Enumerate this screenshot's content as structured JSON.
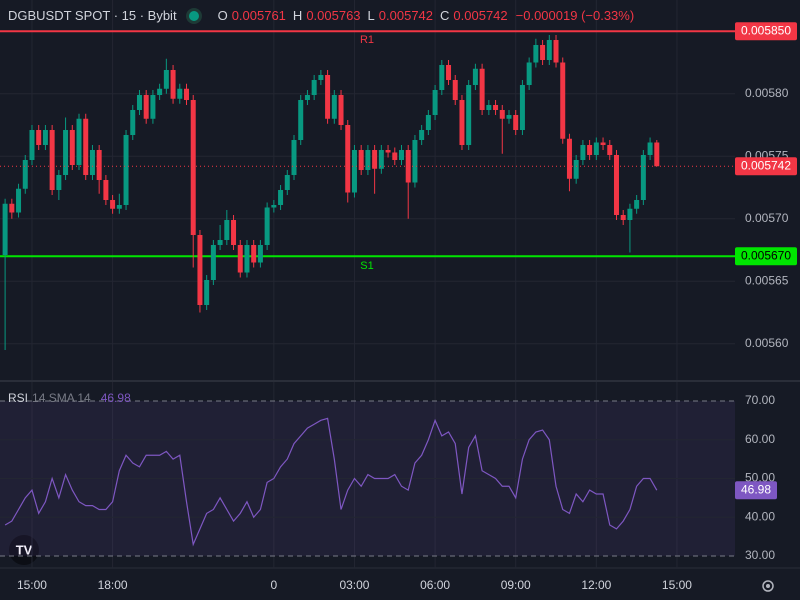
{
  "chart_data": [
    {
      "type": "candlestick",
      "title": "DGBUSDT SPOT · 15 · Bybit",
      "ohlc_labels": [
        "O",
        "H",
        "L",
        "C"
      ],
      "change": "−0.000019 (−0.33%)",
      "up_color": "#089981",
      "down_color": "#f23645",
      "x": [
        -10,
        -9.75,
        -9.5,
        -9.25,
        -9,
        -8.75,
        -8.5,
        -8.25,
        -8,
        -7.75,
        -7.5,
        -7.25,
        -7,
        -6.75,
        -6.5,
        -6.25,
        -6,
        -5.75,
        -5.5,
        -5.25,
        -5,
        -4.75,
        -4.5,
        -4.25,
        -4,
        -3.75,
        -3.5,
        -3.25,
        -3,
        -2.75,
        -2.5,
        -2.25,
        -2,
        -1.75,
        -1.5,
        -1.25,
        -1,
        -0.75,
        -0.5,
        -0.25,
        0,
        0.25,
        0.5,
        0.75,
        1,
        1.25,
        1.5,
        1.75,
        2,
        2.25,
        2.5,
        2.75,
        3,
        3.25,
        3.5,
        3.75,
        4,
        4.25,
        4.5,
        4.75,
        5,
        5.25,
        5.5,
        5.75,
        6,
        6.25,
        6.5,
        6.75,
        7,
        7.25,
        7.5,
        7.75,
        8,
        8.25,
        8.5,
        8.75,
        9,
        9.25,
        9.5,
        9.75,
        10,
        10.25,
        10.5,
        10.75,
        11,
        11.25,
        11.5,
        11.75,
        12,
        12.25,
        12.5,
        12.75,
        13,
        13.25,
        13.5,
        13.75,
        14,
        14.25
      ],
      "ohlc": [
        [
          0.005671,
          0.005716,
          0.005595,
          0.005712
        ],
        [
          0.005712,
          0.005716,
          0.0057,
          0.005705
        ],
        [
          0.005705,
          0.005728,
          0.005701,
          0.005724
        ],
        [
          0.005724,
          0.005751,
          0.00572,
          0.005747
        ],
        [
          0.005747,
          0.005775,
          0.005743,
          0.005771
        ],
        [
          0.005771,
          0.005775,
          0.005755,
          0.005759
        ],
        [
          0.005759,
          0.005775,
          0.005755,
          0.005771
        ],
        [
          0.005771,
          0.005775,
          0.005719,
          0.005723
        ],
        [
          0.005723,
          0.005739,
          0.005715,
          0.005735
        ],
        [
          0.005735,
          0.005781,
          0.005731,
          0.005771
        ],
        [
          0.005771,
          0.005775,
          0.005739,
          0.005743
        ],
        [
          0.005743,
          0.005784,
          0.005739,
          0.00578
        ],
        [
          0.00578,
          0.005784,
          0.005731,
          0.005735
        ],
        [
          0.005735,
          0.005759,
          0.005731,
          0.005755
        ],
        [
          0.005755,
          0.005759,
          0.00572,
          0.005731
        ],
        [
          0.005731,
          0.005735,
          0.005711,
          0.005715
        ],
        [
          0.005715,
          0.005719,
          0.005704,
          0.005708
        ],
        [
          0.005708,
          0.00572,
          0.005704,
          0.005711
        ],
        [
          0.005711,
          0.005771,
          0.005707,
          0.005767
        ],
        [
          0.005767,
          0.005791,
          0.005763,
          0.005787
        ],
        [
          0.005787,
          0.005803,
          0.005783,
          0.005799
        ],
        [
          0.005799,
          0.005803,
          0.005776,
          0.00578
        ],
        [
          0.00578,
          0.005803,
          0.005776,
          0.005799
        ],
        [
          0.005799,
          0.005808,
          0.005795,
          0.005804
        ],
        [
          0.005804,
          0.005828,
          0.0058,
          0.005819
        ],
        [
          0.005819,
          0.005823,
          0.005792,
          0.005796
        ],
        [
          0.005796,
          0.005808,
          0.005792,
          0.005804
        ],
        [
          0.005804,
          0.005808,
          0.005791,
          0.005795
        ],
        [
          0.005795,
          0.005799,
          0.005661,
          0.005687
        ],
        [
          0.005687,
          0.005691,
          0.005625,
          0.005631
        ],
        [
          0.005631,
          0.005655,
          0.005627,
          0.005651
        ],
        [
          0.005651,
          0.005683,
          0.005647,
          0.005679
        ],
        [
          0.005679,
          0.005695,
          0.005675,
          0.005683
        ],
        [
          0.005683,
          0.005707,
          0.005679,
          0.005699
        ],
        [
          0.005699,
          0.005703,
          0.005675,
          0.005679
        ],
        [
          0.005679,
          0.005683,
          0.005653,
          0.005657
        ],
        [
          0.005657,
          0.005683,
          0.005653,
          0.005679
        ],
        [
          0.005679,
          0.005683,
          0.005661,
          0.005665
        ],
        [
          0.005665,
          0.005683,
          0.005661,
          0.005679
        ],
        [
          0.005679,
          0.005713,
          0.005675,
          0.005709
        ],
        [
          0.005709,
          0.005715,
          0.005705,
          0.005711
        ],
        [
          0.005711,
          0.005727,
          0.005707,
          0.005723
        ],
        [
          0.005723,
          0.005739,
          0.005719,
          0.005735
        ],
        [
          0.005735,
          0.005767,
          0.005731,
          0.005763
        ],
        [
          0.005763,
          0.005799,
          0.005759,
          0.005795
        ],
        [
          0.005795,
          0.005803,
          0.005791,
          0.005799
        ],
        [
          0.005799,
          0.005815,
          0.005795,
          0.005811
        ],
        [
          0.005811,
          0.005819,
          0.005807,
          0.005815
        ],
        [
          0.005815,
          0.005819,
          0.005776,
          0.00578
        ],
        [
          0.00578,
          0.005803,
          0.005776,
          0.005799
        ],
        [
          0.005799,
          0.005803,
          0.005771,
          0.005775
        ],
        [
          0.005775,
          0.005779,
          0.005713,
          0.005721
        ],
        [
          0.005721,
          0.005759,
          0.005717,
          0.005755
        ],
        [
          0.005755,
          0.005759,
          0.005735,
          0.005739
        ],
        [
          0.005739,
          0.005759,
          0.005735,
          0.005755
        ],
        [
          0.005755,
          0.005759,
          0.00572,
          0.00574
        ],
        [
          0.00574,
          0.005759,
          0.005736,
          0.005755
        ],
        [
          0.005755,
          0.005759,
          0.005749,
          0.005753
        ],
        [
          0.005753,
          0.005757,
          0.005743,
          0.005747
        ],
        [
          0.005747,
          0.005759,
          0.005743,
          0.005755
        ],
        [
          0.005755,
          0.005759,
          0.0057,
          0.005729
        ],
        [
          0.005729,
          0.005767,
          0.005725,
          0.005763
        ],
        [
          0.005763,
          0.005775,
          0.005759,
          0.005771
        ],
        [
          0.005771,
          0.005787,
          0.005767,
          0.005783
        ],
        [
          0.005783,
          0.005807,
          0.005779,
          0.005803
        ],
        [
          0.005803,
          0.005827,
          0.005799,
          0.005823
        ],
        [
          0.005823,
          0.005827,
          0.005807,
          0.005811
        ],
        [
          0.005811,
          0.005815,
          0.005791,
          0.005795
        ],
        [
          0.005795,
          0.005799,
          0.005755,
          0.005759
        ],
        [
          0.005759,
          0.005811,
          0.005755,
          0.005807
        ],
        [
          0.005807,
          0.005824,
          0.005803,
          0.00582
        ],
        [
          0.00582,
          0.005824,
          0.005783,
          0.005787
        ],
        [
          0.005787,
          0.005795,
          0.005783,
          0.005791
        ],
        [
          0.005791,
          0.005795,
          0.005783,
          0.005787
        ],
        [
          0.005787,
          0.005791,
          0.005752,
          0.00578
        ],
        [
          0.00578,
          0.005787,
          0.005776,
          0.005783
        ],
        [
          0.005783,
          0.005787,
          0.005767,
          0.005771
        ],
        [
          0.005771,
          0.005811,
          0.005767,
          0.005807
        ],
        [
          0.005807,
          0.005829,
          0.005803,
          0.005825
        ],
        [
          0.005825,
          0.005844,
          0.005821,
          0.005839
        ],
        [
          0.005839,
          0.005843,
          0.005823,
          0.005827
        ],
        [
          0.005827,
          0.005847,
          0.005823,
          0.005843
        ],
        [
          0.005843,
          0.005847,
          0.005821,
          0.005825
        ],
        [
          0.005825,
          0.005829,
          0.00576,
          0.005764
        ],
        [
          0.005764,
          0.005768,
          0.005722,
          0.005732
        ],
        [
          0.005732,
          0.005751,
          0.005728,
          0.005747
        ],
        [
          0.005747,
          0.005763,
          0.005743,
          0.005759
        ],
        [
          0.005759,
          0.005763,
          0.005747,
          0.005751
        ],
        [
          0.005751,
          0.005765,
          0.005747,
          0.005761
        ],
        [
          0.005761,
          0.005765,
          0.005755,
          0.005759
        ],
        [
          0.005759,
          0.005763,
          0.005747,
          0.005751
        ],
        [
          0.005751,
          0.005755,
          0.005699,
          0.005703
        ],
        [
          0.005703,
          0.005707,
          0.005695,
          0.005699
        ],
        [
          0.005699,
          0.005712,
          0.005673,
          0.005708
        ],
        [
          0.005708,
          0.005719,
          0.005704,
          0.005715
        ],
        [
          0.005715,
          0.005755,
          0.005711,
          0.005751
        ],
        [
          0.005751,
          0.005765,
          0.005747,
          0.005761
        ],
        [
          0.005761,
          0.005763,
          0.005742,
          0.005742
        ]
      ],
      "xlim": [
        -10.19,
        17.16
      ],
      "xticks": [
        {
          "value": -9,
          "label": "15:00"
        },
        {
          "value": -6,
          "label": "18:00"
        },
        0,
        {
          "value": 3,
          "label": "03:00"
        },
        {
          "value": 6,
          "label": "06:00"
        },
        {
          "value": 9,
          "label": "09:00"
        },
        {
          "value": 12,
          "label": "12:00"
        },
        {
          "value": 15,
          "label": "15:00"
        }
      ],
      "ylim": [
        0.005571,
        0.005875
      ],
      "yticks": [
        {
          "value": 0.0056,
          "label": "0.00560"
        },
        {
          "value": 0.00565,
          "label": "0.00565"
        },
        {
          "value": 0.0057,
          "label": "0.00570"
        },
        {
          "value": 0.00575,
          "label": "0.00575"
        },
        {
          "value": 0.0058,
          "label": "0.00580"
        }
      ],
      "levels": [
        {
          "name": "R1",
          "value": 0.00585,
          "label": "0.005850",
          "color": "#f23645"
        },
        {
          "name": "S1",
          "value": 0.00567,
          "label": "0.005670",
          "color": "#00e600"
        }
      ],
      "grid": true
    },
    {
      "type": "line",
      "title": "RSI",
      "subtitle": "14 SMA 14",
      "color": "#7e57c2",
      "values": [
        38,
        39,
        42,
        45,
        47,
        41,
        44,
        50,
        45,
        51,
        47,
        44,
        43,
        43,
        42,
        42,
        44,
        52,
        56,
        54,
        53,
        56,
        56,
        56,
        57,
        55,
        56,
        44,
        33,
        37,
        41,
        42,
        45,
        42,
        39,
        41,
        44,
        40,
        42,
        49,
        50,
        53,
        55,
        59,
        61,
        63,
        64,
        65,
        65.5,
        55,
        42,
        47,
        50,
        48,
        51,
        50,
        50,
        50,
        51,
        48,
        47,
        54,
        56,
        60,
        65,
        61,
        62,
        59,
        46,
        58,
        61,
        52,
        51,
        50,
        48,
        48,
        45,
        55,
        60,
        62,
        62.5,
        60,
        48,
        42,
        41,
        46,
        44,
        47,
        46,
        46,
        38,
        37,
        39,
        42,
        48,
        50,
        50,
        46.98
      ],
      "ylim": [
        26.9,
        74.9
      ],
      "yticks": [
        {
          "value": 30,
          "label": "30.00"
        },
        {
          "value": 40,
          "label": "40.00"
        },
        {
          "value": 50,
          "label": "50.00"
        },
        {
          "value": 60,
          "label": "60.00"
        },
        {
          "value": 70,
          "label": "70.00"
        }
      ]
    }
  ]
}
